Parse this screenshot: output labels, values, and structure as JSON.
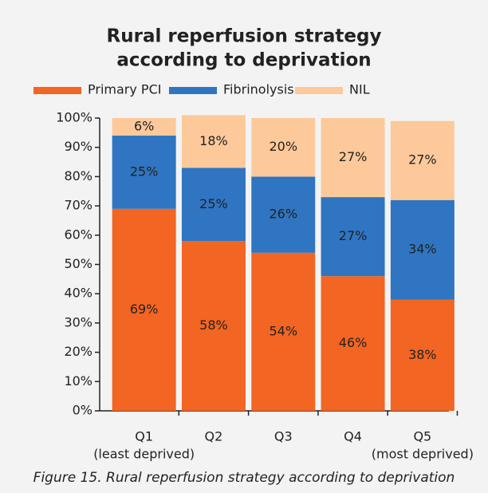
{
  "chart_data": {
    "type": "stacked_bar",
    "title": [
      "Rural reperfusion strategy",
      "according to deprivation"
    ],
    "caption": "Figure 15. Rural reperfusion strategy according to deprivation",
    "categories": [
      [
        "Q1",
        "(least deprived)"
      ],
      [
        "Q2"
      ],
      [
        "Q3"
      ],
      [
        "Q4"
      ],
      [
        "Q5",
        "(most deprived)"
      ]
    ],
    "series": [
      {
        "name": "Primary PCI",
        "color": "#f26522",
        "values": [
          69,
          58,
          54,
          46,
          38
        ],
        "value_labels": [
          "69%",
          "58%",
          "54%",
          "46%",
          "38%"
        ]
      },
      {
        "name": "Fibrinolysis",
        "color": "#2f75c1",
        "values": [
          25,
          25,
          26,
          27,
          34
        ],
        "value_labels": [
          "25%",
          "25%",
          "26%",
          "27%",
          "34%"
        ]
      },
      {
        "name": "NIL",
        "color": "#fdc99a",
        "values": [
          6,
          18,
          20,
          27,
          27
        ],
        "value_labels": [
          "6%",
          "18%",
          "20%",
          "27%",
          "27%"
        ]
      }
    ],
    "ylim": [
      0,
      100
    ],
    "yticks": [
      {
        "value": 0,
        "label": "0%"
      },
      {
        "value": 10,
        "label": "10%"
      },
      {
        "value": 20,
        "label": "20%"
      },
      {
        "value": 30,
        "label": "30%"
      },
      {
        "value": 40,
        "label": "40%"
      },
      {
        "value": 50,
        "label": "50%"
      },
      {
        "value": 60,
        "label": "60%"
      },
      {
        "value": 70,
        "label": "70%"
      },
      {
        "value": 80,
        "label": "80%"
      },
      {
        "value": 90,
        "label": "90%"
      },
      {
        "value": 100,
        "label": "100%"
      }
    ],
    "legend": "top"
  }
}
